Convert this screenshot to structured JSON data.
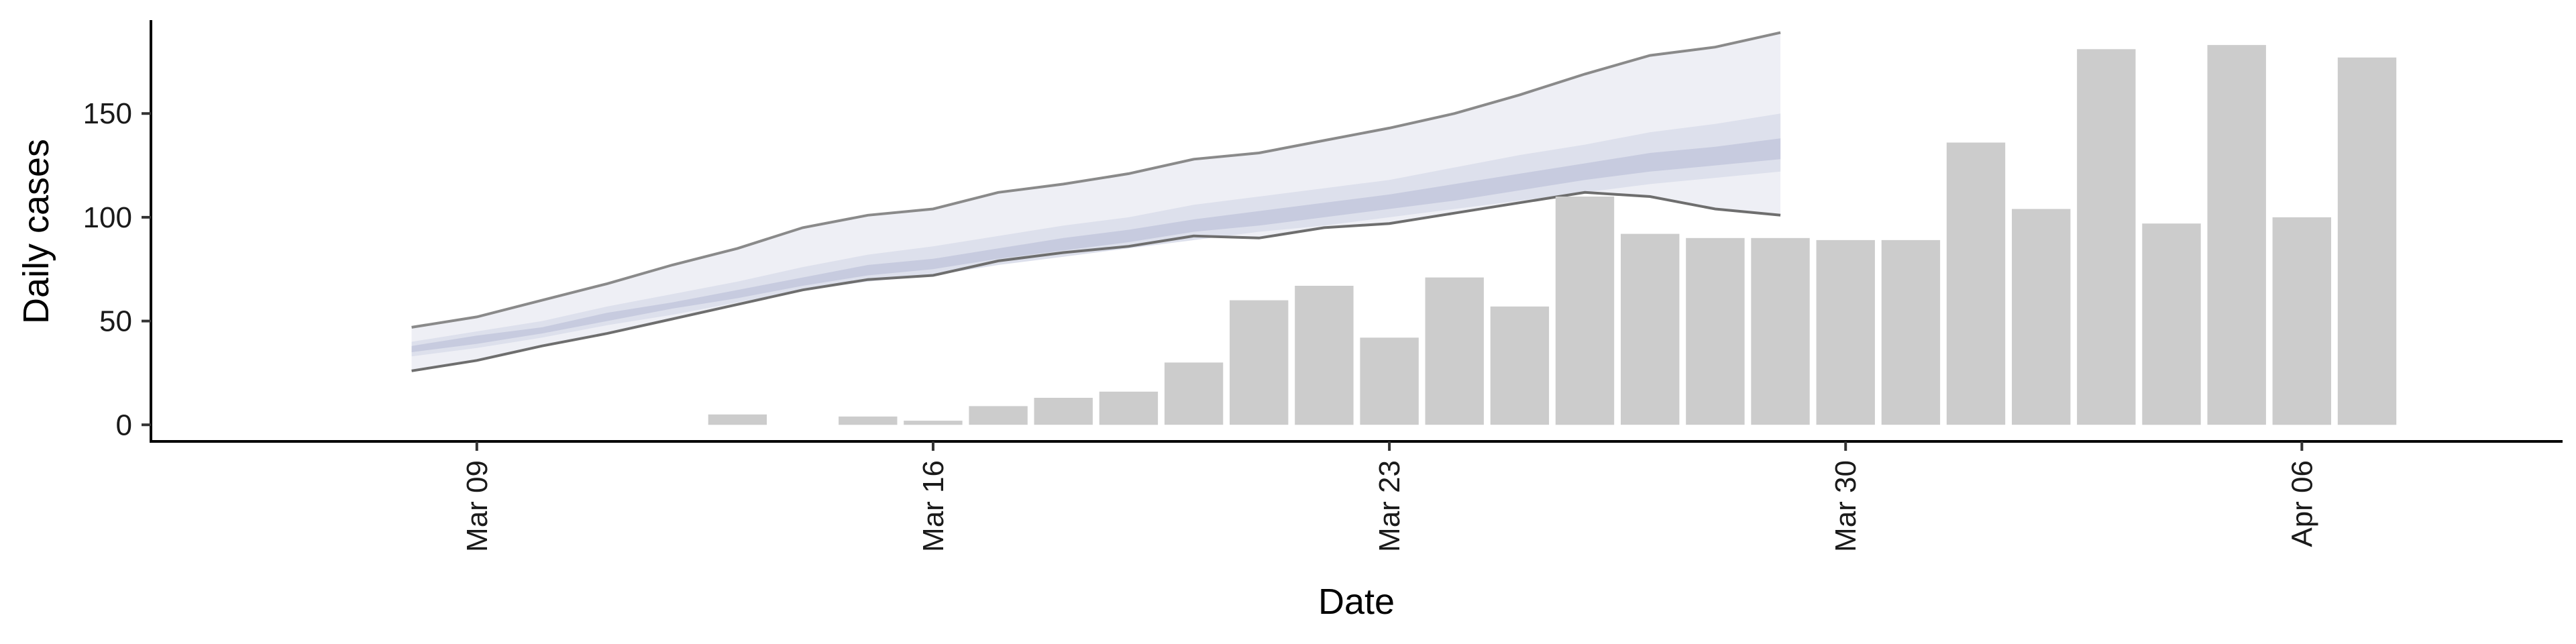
{
  "chart_data": {
    "type": "bar",
    "title": "",
    "xlabel": "Date",
    "ylabel": "Daily cases",
    "ylim": [
      -8,
      195
    ],
    "xlim": [
      "2020-03-04",
      "2020-04-10"
    ],
    "y_ticks": [
      0,
      50,
      100,
      150
    ],
    "x_ticks": [
      {
        "date": "2020-03-09",
        "label": "Mar 09"
      },
      {
        "date": "2020-03-16",
        "label": "Mar 16"
      },
      {
        "date": "2020-03-23",
        "label": "Mar 23"
      },
      {
        "date": "2020-03-30",
        "label": "Mar 30"
      },
      {
        "date": "2020-04-06",
        "label": "Apr 06"
      }
    ],
    "grid": false,
    "bar_color": "#cccccc",
    "bars": {
      "dates": [
        "2020-03-13",
        "2020-03-15",
        "2020-03-16",
        "2020-03-17",
        "2020-03-18",
        "2020-03-19",
        "2020-03-20",
        "2020-03-21",
        "2020-03-22",
        "2020-03-23",
        "2020-03-24",
        "2020-03-25",
        "2020-03-26",
        "2020-03-27",
        "2020-03-28",
        "2020-03-29",
        "2020-03-30",
        "2020-03-31",
        "2020-04-01",
        "2020-04-02",
        "2020-04-03",
        "2020-04-04",
        "2020-04-05",
        "2020-04-06",
        "2020-04-07"
      ],
      "values": [
        5,
        4,
        2,
        9,
        13,
        16,
        30,
        60,
        67,
        42,
        71,
        57,
        110,
        92,
        90,
        90,
        89,
        89,
        136,
        104,
        181,
        97,
        183,
        100,
        177
      ]
    },
    "forecast": {
      "dates": [
        "2020-03-08",
        "2020-03-09",
        "2020-03-10",
        "2020-03-11",
        "2020-03-12",
        "2020-03-13",
        "2020-03-14",
        "2020-03-15",
        "2020-03-16",
        "2020-03-17",
        "2020-03-18",
        "2020-03-19",
        "2020-03-20",
        "2020-03-21",
        "2020-03-22",
        "2020-03-23",
        "2020-03-24",
        "2020-03-25",
        "2020-03-26",
        "2020-03-27",
        "2020-03-28",
        "2020-03-29"
      ],
      "outer_upper": [
        47,
        52,
        60,
        68,
        77,
        85,
        95,
        101,
        104,
        112,
        116,
        121,
        128,
        131,
        137,
        143,
        150,
        159,
        169,
        178,
        182,
        189
      ],
      "outer_lower": [
        26,
        31,
        38,
        44,
        51,
        58,
        65,
        70,
        72,
        79,
        83,
        86,
        91,
        90,
        95,
        97,
        102,
        107,
        112,
        110,
        104,
        101
      ],
      "inner_upper": [
        40,
        45,
        50,
        57,
        63,
        69,
        76,
        82,
        86,
        91,
        96,
        100,
        106,
        110,
        114,
        118,
        124,
        130,
        135,
        141,
        145,
        150
      ],
      "inner_lower": [
        33,
        37,
        42,
        48,
        53,
        59,
        65,
        69,
        72,
        77,
        81,
        85,
        89,
        93,
        96,
        100,
        104,
        108,
        112,
        116,
        119,
        122
      ],
      "core_upper": [
        38,
        43,
        47,
        54,
        59,
        65,
        71,
        77,
        80,
        85,
        90,
        94,
        99,
        103,
        107,
        111,
        116,
        121,
        126,
        131,
        134,
        138
      ],
      "core_lower": [
        35,
        39,
        44,
        50,
        56,
        61,
        67,
        72,
        75,
        80,
        84,
        88,
        93,
        96,
        100,
        104,
        108,
        113,
        118,
        122,
        125,
        128
      ],
      "fill_outer": "#eeeff5",
      "fill_inner": "#dde0ec",
      "fill_core": "#c7cbdf",
      "line_upper": "#8a8a8a",
      "line_lower": "#6e6e6e"
    }
  }
}
